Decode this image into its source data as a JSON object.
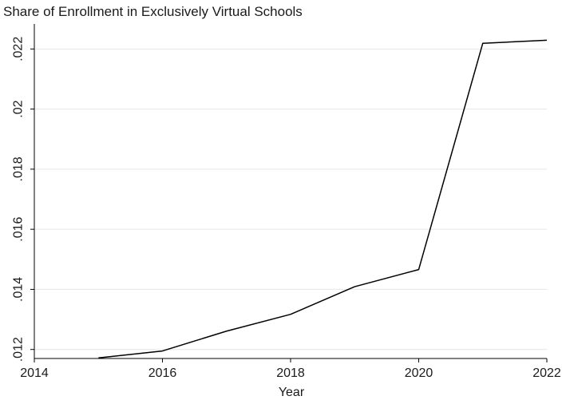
{
  "chart_data": {
    "type": "line",
    "title": "Share of Enrollment in Exclusively Virtual Schools",
    "xlabel": "Year",
    "ylabel": "",
    "xlim": [
      2014,
      2022
    ],
    "ylim": [
      0.0117,
      0.0227
    ],
    "x_ticks": [
      {
        "value": 2014,
        "label": "2014"
      },
      {
        "value": 2016,
        "label": "2016"
      },
      {
        "value": 2018,
        "label": "2018"
      },
      {
        "value": 2020,
        "label": "2020"
      },
      {
        "value": 2022,
        "label": "2022"
      }
    ],
    "y_ticks": [
      {
        "value": 0.012,
        "label": ".012"
      },
      {
        "value": 0.014,
        "label": ".014"
      },
      {
        "value": 0.016,
        "label": ".016"
      },
      {
        "value": 0.018,
        "label": ".018"
      },
      {
        "value": 0.02,
        "label": ".02"
      },
      {
        "value": 0.022,
        "label": ".022"
      }
    ],
    "grid": true,
    "series": [
      {
        "x": [
          2015,
          2016,
          2017,
          2018,
          2019,
          2020,
          2021,
          2022
        ],
        "values": [
          0.01172,
          0.01195,
          0.01261,
          0.01317,
          0.01409,
          0.01466,
          0.02219,
          0.02229
        ],
        "color": "#000000"
      }
    ]
  }
}
